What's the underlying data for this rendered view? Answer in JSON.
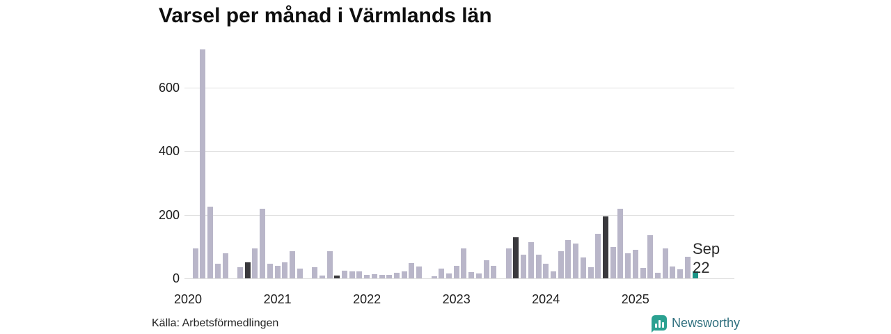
{
  "title": "Varsel per månad i Värmlands län",
  "annotation": {
    "line1": "Sep",
    "line2": "22"
  },
  "footer": {
    "source": "Källa: Arbetsförmedlingen",
    "brand": "Newsworthy",
    "brand_icon": "bar-chart-bubble-icon"
  },
  "colors": {
    "bar_default": "#b9b6c9",
    "bar_highlight": "#3a393d",
    "bar_current": "#1a9487",
    "gridline": "#dedede",
    "axis_text": "#1c1c1c",
    "brand_teal": "#2ba191",
    "brand_text": "#2f6f7e"
  },
  "chart_data": {
    "type": "bar",
    "title": "Varsel per månad i Värmlands län",
    "xlabel": "",
    "ylabel": "",
    "ylim": [
      0,
      730
    ],
    "y_ticks": [
      0,
      200,
      400,
      600
    ],
    "x_year_labels": [
      "2020",
      "2021",
      "2022",
      "2023",
      "2024",
      "2025"
    ],
    "grid": "horizontal",
    "x": [
      "2020-01",
      "2020-02",
      "2020-03",
      "2020-04",
      "2020-05",
      "2020-06",
      "2020-07",
      "2020-08",
      "2020-09",
      "2020-10",
      "2020-11",
      "2020-12",
      "2021-01",
      "2021-02",
      "2021-03",
      "2021-04",
      "2021-05",
      "2021-06",
      "2021-07",
      "2021-08",
      "2021-09",
      "2021-10",
      "2021-11",
      "2021-12",
      "2022-01",
      "2022-02",
      "2022-03",
      "2022-04",
      "2022-05",
      "2022-06",
      "2022-07",
      "2022-08",
      "2022-09",
      "2022-10",
      "2022-11",
      "2022-12",
      "2023-01",
      "2023-02",
      "2023-03",
      "2023-04",
      "2023-05",
      "2023-06",
      "2023-07",
      "2023-08",
      "2023-09",
      "2023-10",
      "2023-11",
      "2023-12",
      "2024-01",
      "2024-02",
      "2024-03",
      "2024-04",
      "2024-05",
      "2024-06",
      "2024-07",
      "2024-08",
      "2024-09",
      "2024-10",
      "2024-11",
      "2024-12",
      "2025-01",
      "2025-02",
      "2025-03",
      "2025-04",
      "2025-05",
      "2025-06",
      "2025-07",
      "2025-08",
      "2025-09"
    ],
    "values": [
      0,
      95,
      720,
      225,
      45,
      80,
      0,
      35,
      50,
      95,
      220,
      45,
      40,
      50,
      85,
      30,
      0,
      35,
      9,
      85,
      8,
      24,
      22,
      22,
      12,
      13,
      10,
      12,
      17,
      22,
      48,
      38,
      0,
      6,
      30,
      15,
      40,
      95,
      20,
      15,
      58,
      40,
      0,
      95,
      130,
      75,
      115,
      75,
      45,
      22,
      85,
      120,
      110,
      65,
      35,
      140,
      195,
      98,
      220,
      78,
      90,
      34,
      135,
      18,
      95,
      38,
      29,
      67,
      22
    ],
    "highlight_months": [
      "2020-09",
      "2021-09",
      "2022-09",
      "2023-09",
      "2024-09"
    ],
    "current_month": "2025-09",
    "current_month_label": "Sep 22",
    "legend": "none"
  }
}
